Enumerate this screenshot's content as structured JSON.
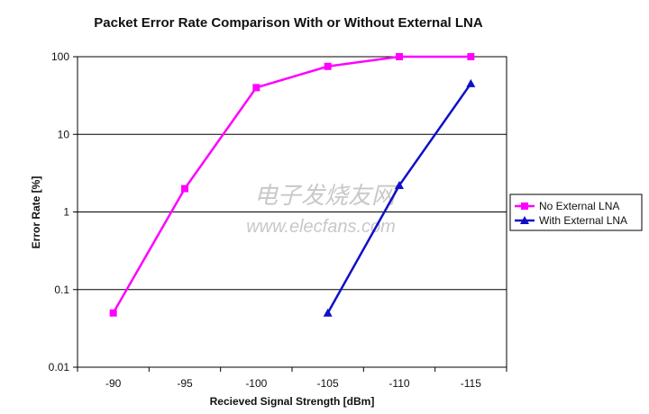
{
  "chart_data": {
    "type": "line",
    "title": "Packet Error Rate Comparison With or Without External LNA",
    "xlabel": "Recieved Signal Strength [dBm]",
    "ylabel": "Error Rate [%]",
    "categories": [
      "-90",
      "-95",
      "-100",
      "-105",
      "-110",
      "-115"
    ],
    "y_scale": "log",
    "ylim": [
      0.01,
      100
    ],
    "y_ticks": [
      "0.01",
      "0.1",
      "1",
      "10",
      "100"
    ],
    "grid": "horizontal",
    "legend_position": "right",
    "series": [
      {
        "name": "No External LNA",
        "color": "#ff00ff",
        "marker": "square",
        "values": [
          0.05,
          2,
          40,
          75,
          100,
          100
        ]
      },
      {
        "name": "With External LNA",
        "color": "#1010c8",
        "marker": "triangle",
        "values": [
          null,
          null,
          null,
          0.05,
          2.2,
          45
        ]
      }
    ]
  },
  "watermark": {
    "line1": "电子发烧友网",
    "line2": "www.elecfans.com"
  }
}
